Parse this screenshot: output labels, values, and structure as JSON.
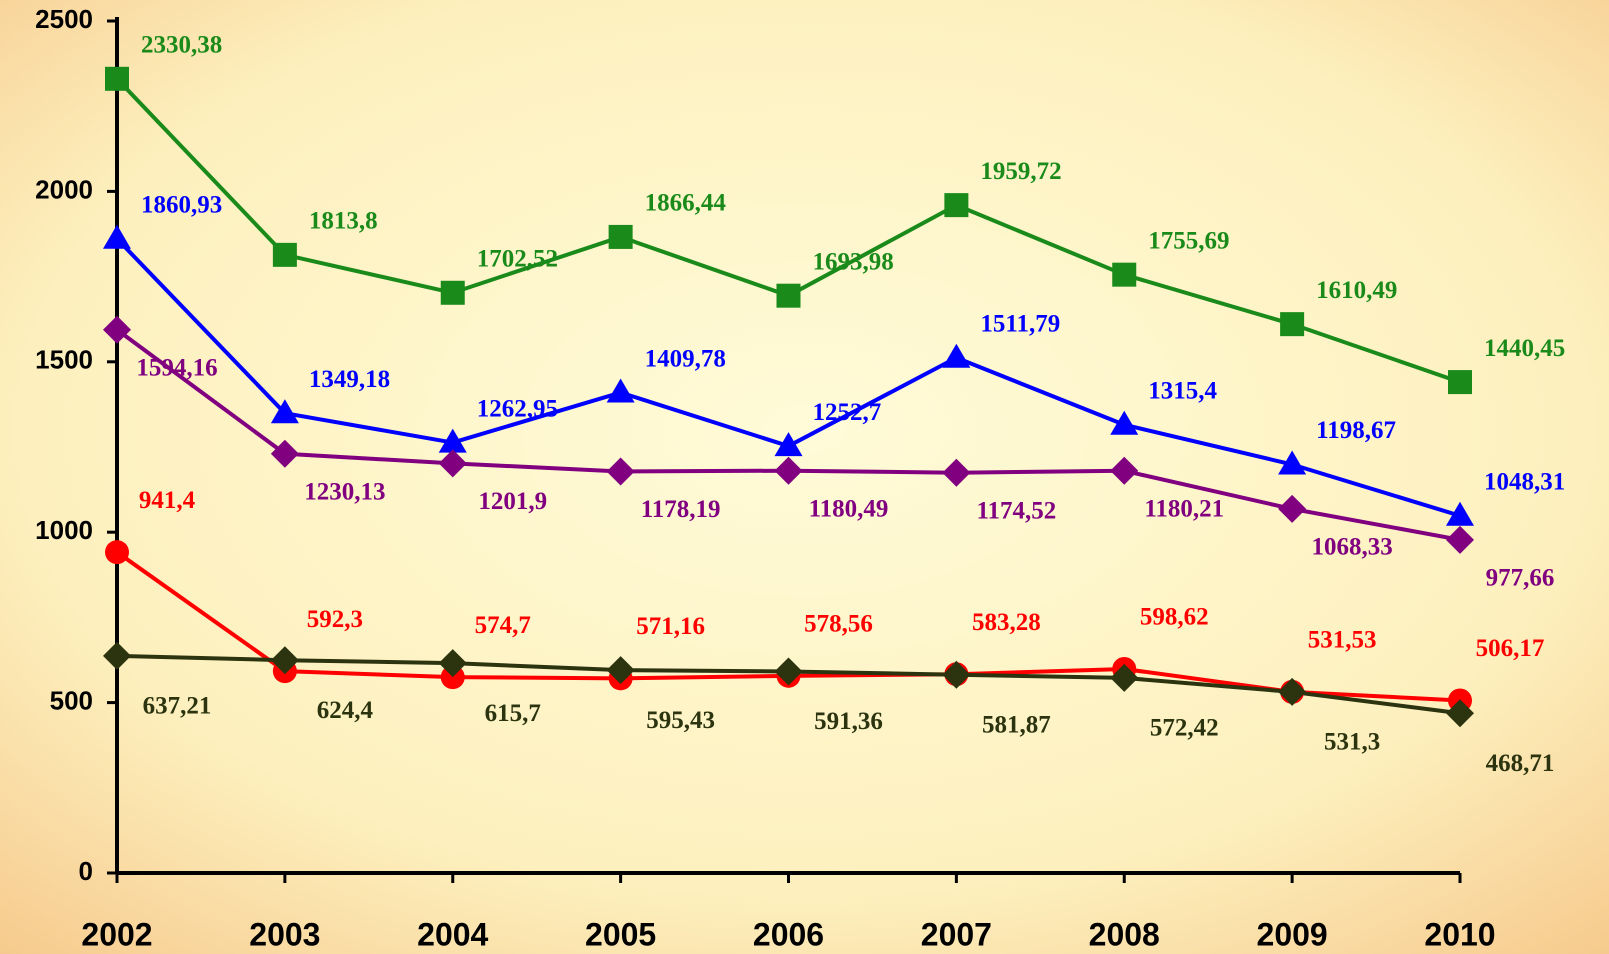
{
  "chart_data": {
    "type": "line",
    "categories": [
      "2002",
      "2003",
      "2004",
      "2005",
      "2006",
      "2007",
      "2008",
      "2009",
      "2010"
    ],
    "series": [
      {
        "color": "#1a8a1a",
        "marker": "square",
        "values": [
          2330.38,
          1813.8,
          1702.52,
          1866.44,
          1693.98,
          1959.72,
          1755.69,
          1610.49,
          1440.45
        ],
        "value_labels": [
          "2330,38",
          "1813,8",
          "1702,52",
          "1866,44",
          "1693,98",
          "1959,72",
          "1755,69",
          "1610,49",
          "1440,45"
        ]
      },
      {
        "color": "#0000ff",
        "marker": "triangle",
        "values": [
          1860.93,
          1349.18,
          1262.95,
          1409.78,
          1252.7,
          1511.79,
          1315.4,
          1198.67,
          1048.31
        ],
        "value_labels": [
          "1860,93",
          "1349,18",
          "1262,95",
          "1409,78",
          "1252,7",
          "1511,79",
          "1315,4",
          "1198,67",
          "1048,31"
        ]
      },
      {
        "color": "#800080",
        "marker": "diamond",
        "values": [
          1594.16,
          1230.13,
          1201.9,
          1178.19,
          1180.49,
          1174.52,
          1180.21,
          1068.33,
          977.66
        ],
        "value_labels": [
          "1594,16",
          "1230,13",
          "1201,9",
          "1178,19",
          "1180,49",
          "1174,52",
          "1180,21",
          "1068,33",
          "977,66"
        ]
      },
      {
        "color": "#ff0000",
        "marker": "circle",
        "values": [
          941.4,
          592.3,
          574.7,
          571.16,
          578.56,
          583.28,
          598.62,
          531.53,
          506.17
        ],
        "value_labels": [
          "941,4",
          "592,3",
          "574,7",
          "571,16",
          "578,56",
          "583,28",
          "598,62",
          "531,53",
          "506,17"
        ]
      },
      {
        "color": "#2b330f",
        "marker": "diamond",
        "values": [
          637.21,
          624.4,
          615.7,
          595.43,
          591.36,
          581.87,
          572.42,
          531.3,
          468.71
        ],
        "value_labels": [
          "637,21",
          "624,4",
          "615,7",
          "595,43",
          "591,36",
          "581,87",
          "572,42",
          "531,3",
          "468,71"
        ]
      }
    ],
    "ylim": [
      0,
      2500
    ],
    "yticks": [
      0,
      500,
      1000,
      1500,
      2000,
      2500
    ]
  }
}
